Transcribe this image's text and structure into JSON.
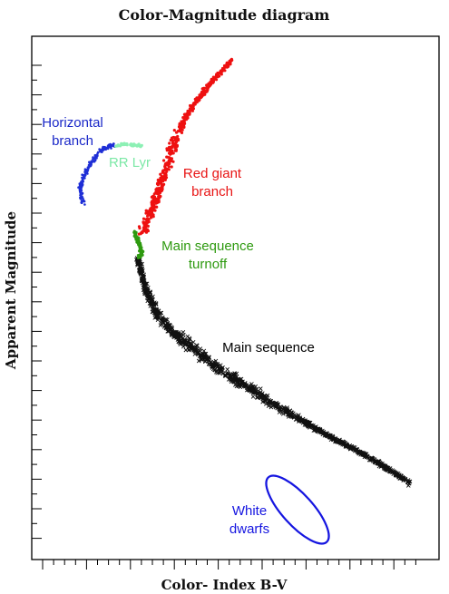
{
  "chart_data": {
    "type": "scatter",
    "title": "Color-Magnitude diagram",
    "xlabel": "Color- Index B-V",
    "ylabel": "Apparent Magnitude",
    "axis_tick_labels": "none",
    "y_direction": "brighter stars toward top",
    "grid": false,
    "legend": "none (regions labeled directly on the plot)",
    "regions": [
      {
        "name": "Horizontal branch",
        "label": "Horizontal\nbranch",
        "color": "#1f2fd6",
        "marker": "dot"
      },
      {
        "name": "RR Lyr",
        "label": "RR Lyr",
        "color": "#8cf0b4",
        "marker": "dot"
      },
      {
        "name": "Red giant branch",
        "label": "Red giant\nbranch",
        "color": "#ee1111",
        "marker": "dot"
      },
      {
        "name": "Main sequence turnoff",
        "label": "Main sequence\nturnoff",
        "color": "#2e9a10",
        "marker": "dot"
      },
      {
        "name": "Main sequence",
        "label": "Main sequence",
        "color": "#111111",
        "marker": "x"
      },
      {
        "name": "White dwarfs",
        "label": "White\ndwarfs",
        "color": "#1515e0",
        "marker": "ellipse-outline"
      }
    ]
  }
}
